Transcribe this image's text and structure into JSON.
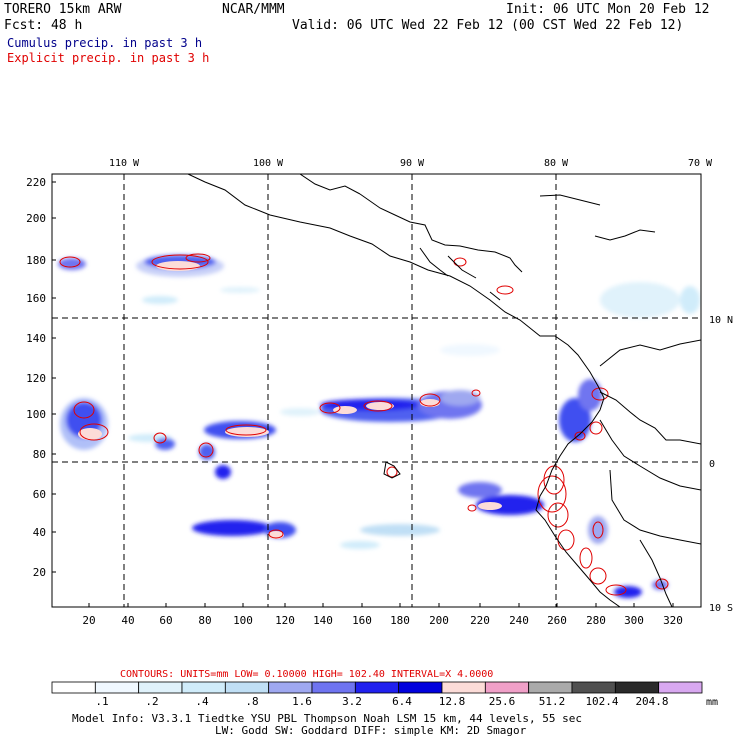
{
  "header": {
    "model": "TORERO  15km ARW",
    "org": "NCAR/MMM",
    "init": "Init: 06 UTC Mon 20 Feb 12",
    "fcst": "Fcst:   48 h",
    "valid": "Valid: 06 UTC Wed 22 Feb 12 (00 CST Wed 22 Feb 12)",
    "field1": "Cumulus precip. in past 3 h",
    "field2": "Explicit precip. in past 3 h"
  },
  "colors": {
    "field1": "#00008b",
    "field2": "#e00000",
    "contour": "#e00000"
  },
  "map": {
    "lon_labels": [
      "110 W",
      "100 W",
      "90 W",
      "80 W",
      "70 W"
    ],
    "lat_labels": [
      "10 N",
      "0",
      "10 S"
    ],
    "y_ticks": [
      "220",
      "200",
      "180",
      "160",
      "140",
      "120",
      "100",
      "80",
      "60",
      "40",
      "20"
    ],
    "x_ticks": [
      "20",
      "40",
      "60",
      "80",
      "100",
      "120",
      "140",
      "160",
      "180",
      "200",
      "220",
      "240",
      "260",
      "280",
      "300",
      "320"
    ]
  },
  "contour_info": {
    "label": "CONTOURS:  UNITS=mm  LOW= 0.10000      HIGH=  102.40      INTERVAL=X  4.0000"
  },
  "colorbar": {
    "colors": [
      "#ffffff",
      "#f0f8ff",
      "#e0f2fb",
      "#d0ecfa",
      "#c0dff5",
      "#9fa8f0",
      "#6f74f0",
      "#2020ee",
      "#0000dd",
      "#fcdcd8",
      "#f0a0c8",
      "#aaaaaa",
      "#505050",
      "#2a2a2a",
      "#d8a8f0"
    ],
    "labels": [
      ".1",
      ".2",
      ".4",
      ".8",
      "1.6",
      "3.2",
      "6.4",
      "12.8",
      "25.6",
      "51.2",
      "102.4",
      "204.8"
    ],
    "unit": "mm"
  },
  "footer": {
    "line1": "Model Info: V3.3.1   Tiedtke YSU PBL  Thompson    Noah LSM  15 km,   44 levels,   55 sec",
    "line2": "LW: Godd SW: Goddard DIFF: simple KM: 2D Smagor"
  }
}
